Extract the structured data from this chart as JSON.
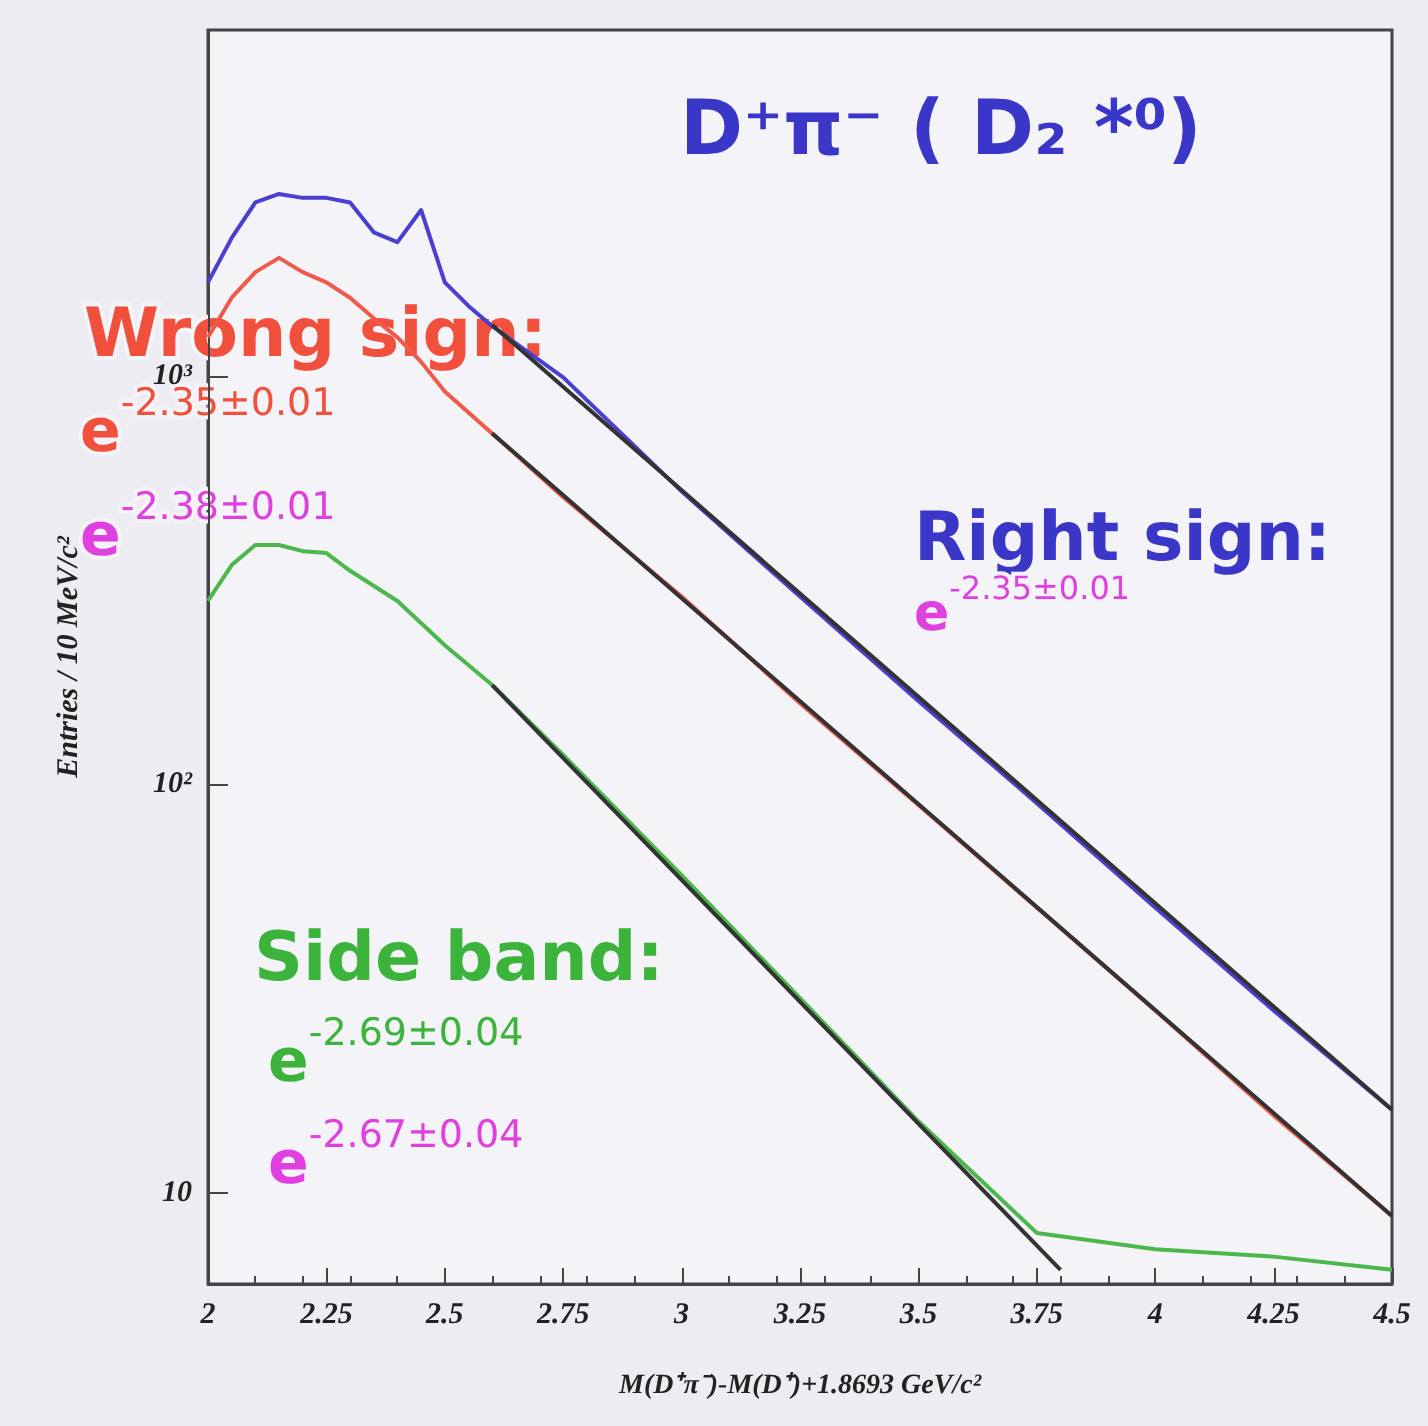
{
  "chart_data": {
    "type": "line",
    "title": "D⁺π⁻ ( D₂ *⁰)",
    "xlabel": "M(D⁺π⁻)-M(D⁺)+1.8693 GeV/c²",
    "ylabel": "Entries / 10 MeV/c²",
    "log": "y",
    "grid": false,
    "marker": "none",
    "line_style": "solid",
    "xlim": [
      2,
      4.5
    ],
    "xticks": [
      2,
      2.25,
      2.5,
      2.75,
      3,
      3.25,
      3.5,
      3.75,
      4,
      4.25,
      4.5
    ],
    "ylim": [
      6,
      7000
    ],
    "yticks": [
      10,
      {
        "value": 100,
        "label": "10²"
      },
      {
        "value": 1000,
        "label": "10³"
      }
    ],
    "series": [
      {
        "color": "#4a3fd0",
        "x": [
          2,
          2.05,
          2.1,
          2.15,
          2.2,
          2.25,
          2.3,
          2.35,
          2.4,
          2.45,
          2.5,
          2.55,
          2.6,
          2.75,
          3,
          3.25,
          3.5,
          3.75,
          4,
          4.25,
          4.5
        ],
        "values": [
          1690,
          2170,
          2650,
          2780,
          2720,
          2720,
          2650,
          2240,
          2120,
          2540,
          1690,
          1480,
          1320,
          990,
          521,
          288,
          160,
          90,
          50,
          28,
          16
        ]
      },
      {
        "color": "#f05a4a",
        "x": [
          2,
          2.05,
          2.1,
          2.15,
          2.2,
          2.25,
          2.3,
          2.35,
          2.4,
          2.45,
          2.5,
          2.6,
          2.75,
          3,
          3.25,
          3.5,
          3.75,
          4,
          4.25,
          4.5
        ],
        "values": [
          1240,
          1550,
          1790,
          1940,
          1790,
          1690,
          1550,
          1380,
          1240,
          1080,
          914,
          722,
          504,
          288,
          158,
          89,
          50,
          28,
          15.5,
          8.8
        ]
      },
      {
        "color": "#4cb84c",
        "x": [
          2,
          2.05,
          2.1,
          2.15,
          2.2,
          2.25,
          2.3,
          2.4,
          2.5,
          2.6,
          2.75,
          3,
          3.25,
          3.5,
          3.75,
          4,
          4.25,
          4.5
        ],
        "values": [
          281,
          344,
          385,
          385,
          372,
          368,
          333,
          281,
          219,
          175,
          118,
          60,
          30,
          15,
          8,
          7.3,
          7,
          6.5
        ]
      },
      {
        "color": "#333333",
        "x": [
          2.6,
          4.5
        ],
        "values": [
          1330,
          16
        ]
      },
      {
        "color": "#333333",
        "x": [
          2.6,
          4.5
        ],
        "values": [
          722,
          8.8
        ]
      },
      {
        "color": "#333333",
        "x": [
          2.6,
          3.8
        ],
        "values": [
          175,
          6.5
        ]
      }
    ],
    "annotations": [
      "Wrong sign:",
      "e$^{-2.35±0.01}$",
      "e$^{-2.38±0.01}$",
      "Right sign:",
      "e$^{-2.35±0.01}$",
      "Side band:",
      "e$^{-2.69±0.04}$",
      "e$^{-2.67±0.04}$"
    ]
  }
}
